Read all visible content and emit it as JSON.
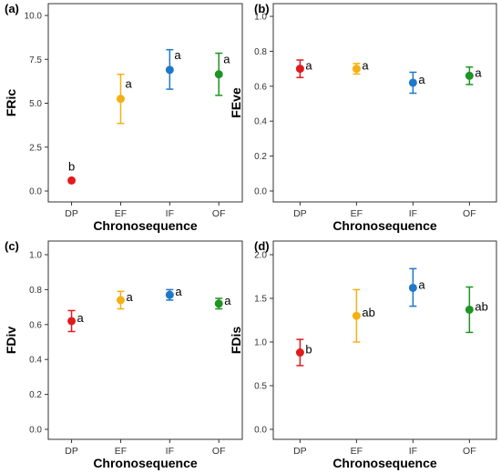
{
  "figure": {
    "panels": [
      "a",
      "b",
      "c",
      "d"
    ]
  },
  "chart_data": [
    {
      "panel_label": "(a)",
      "type": "scatter",
      "xlabel": "Chronosequence",
      "ylabel": "FRic",
      "categories": [
        "DP",
        "EF",
        "IF",
        "OF"
      ],
      "ylim": [
        0,
        10
      ],
      "yticks": [
        "0.0",
        "2.5",
        "5.0",
        "7.5",
        "10.0"
      ],
      "ytick_values": [
        0,
        2.5,
        5,
        7.5,
        10
      ],
      "values": [
        0.6,
        5.25,
        6.9,
        6.65
      ],
      "err_low": [
        0.6,
        3.85,
        5.8,
        5.45
      ],
      "err_high": [
        0.6,
        6.65,
        8.05,
        7.85
      ],
      "labels": [
        "b",
        "a",
        "a",
        "a"
      ],
      "colors": [
        "#e31a1c",
        "#f5b014",
        "#1f78c8",
        "#1e9424"
      ]
    },
    {
      "panel_label": "(b)",
      "type": "scatter",
      "xlabel": "Chronosequence",
      "ylabel": "FEve",
      "categories": [
        "DP",
        "EF",
        "IF",
        "OF"
      ],
      "ylim": [
        0,
        1
      ],
      "yticks": [
        "0.0",
        "0.2",
        "0.4",
        "0.6",
        "0.8",
        "1.0"
      ],
      "ytick_values": [
        0,
        0.2,
        0.4,
        0.6,
        0.8,
        1.0
      ],
      "values": [
        0.7,
        0.7,
        0.62,
        0.66
      ],
      "err_low": [
        0.65,
        0.67,
        0.56,
        0.61
      ],
      "err_high": [
        0.75,
        0.73,
        0.68,
        0.71
      ],
      "labels": [
        "a",
        "a",
        "a",
        "a"
      ],
      "colors": [
        "#e31a1c",
        "#f5b014",
        "#1f78c8",
        "#1e9424"
      ]
    },
    {
      "panel_label": "(c)",
      "type": "scatter",
      "xlabel": "Chronosequence",
      "ylabel": "FDiv",
      "categories": [
        "DP",
        "EF",
        "IF",
        "OF"
      ],
      "ylim": [
        0,
        1
      ],
      "yticks": [
        "0.0",
        "0.2",
        "0.4",
        "0.6",
        "0.8",
        "1.0"
      ],
      "ytick_values": [
        0,
        0.2,
        0.4,
        0.6,
        0.8,
        1.0
      ],
      "values": [
        0.62,
        0.74,
        0.77,
        0.72
      ],
      "err_low": [
        0.56,
        0.69,
        0.74,
        0.69
      ],
      "err_high": [
        0.68,
        0.79,
        0.8,
        0.75
      ],
      "labels": [
        "a",
        "a",
        "a",
        "a"
      ],
      "colors": [
        "#e31a1c",
        "#f5b014",
        "#1f78c8",
        "#1e9424"
      ]
    },
    {
      "panel_label": "(d)",
      "type": "scatter",
      "xlabel": "Chronosequence",
      "ylabel": "FDis",
      "categories": [
        "DP",
        "EF",
        "IF",
        "OF"
      ],
      "ylim": [
        0,
        2
      ],
      "yticks": [
        "0.0",
        "0.5",
        "1.0",
        "1.5",
        "2.0"
      ],
      "ytick_values": [
        0,
        0.5,
        1.0,
        1.5,
        2.0
      ],
      "values": [
        0.88,
        1.3,
        1.62,
        1.37
      ],
      "err_low": [
        0.73,
        1.0,
        1.41,
        1.11
      ],
      "err_high": [
        1.03,
        1.6,
        1.84,
        1.63
      ],
      "labels": [
        "b",
        "ab",
        "a",
        "ab"
      ],
      "colors": [
        "#e31a1c",
        "#f5b014",
        "#1f78c8",
        "#1e9424"
      ]
    }
  ]
}
